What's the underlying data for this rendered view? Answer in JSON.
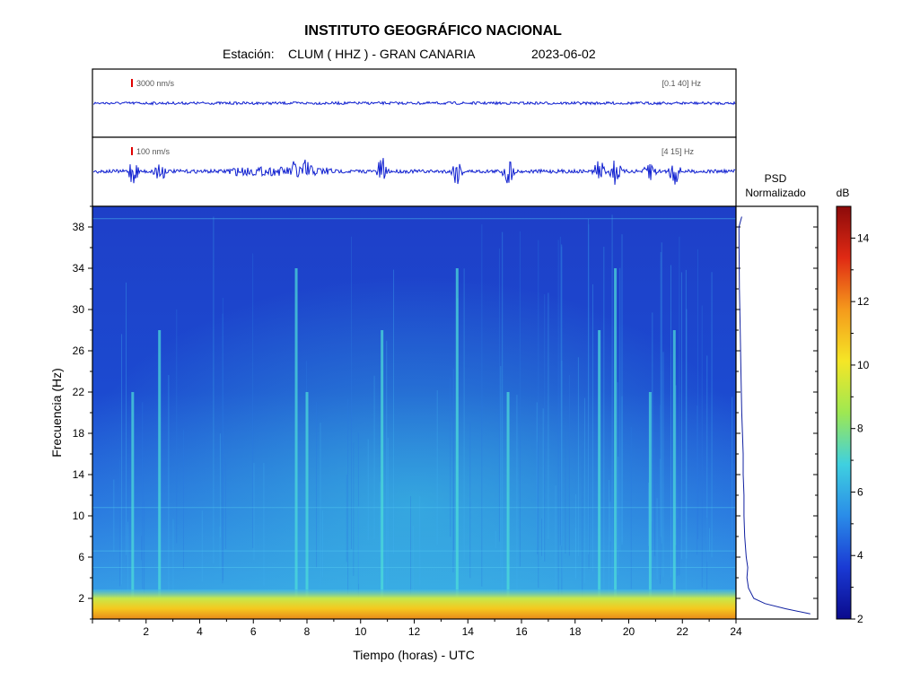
{
  "header": {
    "title": "INSTITUTO GEOGRÁFICO NACIONAL",
    "station_label": "Estación:",
    "station": "CLUM ( HHZ ) - GRAN CANARIA",
    "date": "2023-06-02"
  },
  "traces": [
    {
      "scale_label": "3000 nm/s",
      "band_label": "[0.1 40] Hz"
    },
    {
      "scale_label": "100 nm/s",
      "band_label": "[4 15] Hz"
    }
  ],
  "psd_panel": {
    "title_line1": "PSD",
    "title_line2": "Normalizado"
  },
  "colorbar": {
    "unit": "dB",
    "min": 2,
    "max": 15,
    "ticks": [
      "2",
      "4",
      "6",
      "8",
      "10",
      "12",
      "14"
    ]
  },
  "chart_data": {
    "type": "heatmap",
    "title": "INSTITUTO GEOGRÁFICO NACIONAL",
    "xlabel": "Tiempo (horas) - UTC",
    "ylabel": "Frecuencia (Hz)",
    "xlim": [
      0,
      24
    ],
    "ylim": [
      0,
      40
    ],
    "x_ticks": [
      "2",
      "4",
      "6",
      "8",
      "10",
      "12",
      "14",
      "16",
      "18",
      "20",
      "22",
      "24"
    ],
    "y_ticks": [
      "2",
      "6",
      "10",
      "14",
      "18",
      "22",
      "26",
      "30",
      "34",
      "38"
    ],
    "colorscale": [
      "#0a0a8c",
      "#1a3ad4",
      "#2a8ce8",
      "#3fd0e0",
      "#9ee852",
      "#f5e626",
      "#f59a1c",
      "#e02a14",
      "#8c0a0a"
    ],
    "low_freq_band_hz": [
      0,
      2
    ],
    "event_times_h": [
      1.5,
      2.5,
      7.6,
      8.0,
      10.8,
      13.6,
      15.5,
      18.9,
      19.5,
      20.8,
      21.7
    ],
    "psd_normalized": {
      "freq_hz": [
        0.5,
        1,
        1.5,
        2,
        3,
        4,
        5,
        6,
        8,
        10,
        12,
        14,
        16,
        18,
        20,
        24,
        28,
        32,
        36,
        38,
        39
      ],
      "value": [
        0.95,
        0.62,
        0.35,
        0.2,
        0.13,
        0.11,
        0.12,
        0.1,
        0.08,
        0.07,
        0.07,
        0.06,
        0.06,
        0.05,
        0.04,
        0.03,
        0.02,
        0.01,
        0.005,
        0.003,
        0.04
      ]
    }
  }
}
